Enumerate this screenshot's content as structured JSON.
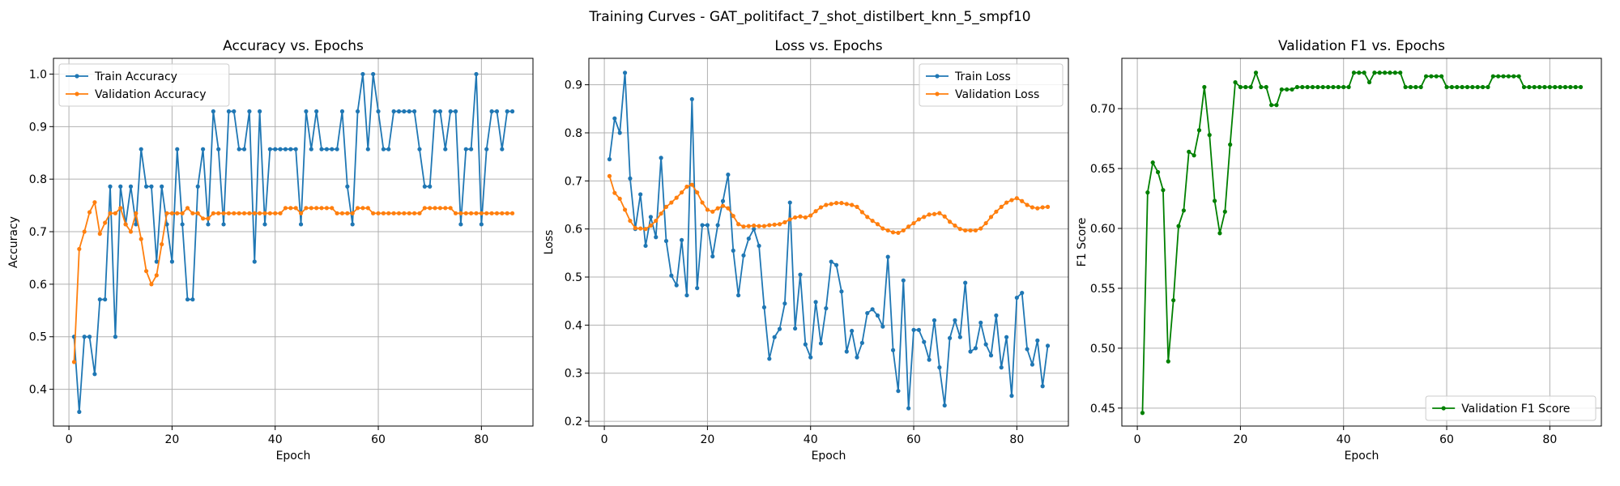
{
  "suptitle": "Training Curves - GAT_politifact_7_shot_distilbert_knn_5_smpf10",
  "chart_data": [
    {
      "type": "line",
      "title": "Accuracy vs. Epochs",
      "xlabel": "Epoch",
      "ylabel": "Accuracy",
      "xlim": [
        -3,
        90
      ],
      "ylim": [
        0.33,
        1.03
      ],
      "xticks": [
        0,
        20,
        40,
        60,
        80
      ],
      "yticks": [
        0.4,
        0.5,
        0.6,
        0.7,
        0.8,
        0.9,
        1.0
      ],
      "ytick_decimals": 1,
      "grid": true,
      "legend_position": "upper-left",
      "x_start": 1,
      "series": [
        {
          "name": "Train Accuracy",
          "color": "#1f77b4",
          "values": [
            0.5,
            0.357,
            0.5,
            0.5,
            0.429,
            0.571,
            0.571,
            0.786,
            0.5,
            0.786,
            0.714,
            0.786,
            0.714,
            0.857,
            0.786,
            0.786,
            0.643,
            0.786,
            0.714,
            0.643,
            0.857,
            0.714,
            0.571,
            0.571,
            0.786,
            0.857,
            0.714,
            0.929,
            0.857,
            0.714,
            0.929,
            0.929,
            0.857,
            0.857,
            0.929,
            0.643,
            0.929,
            0.714,
            0.857,
            0.857,
            0.857,
            0.857,
            0.857,
            0.857,
            0.714,
            0.929,
            0.857,
            0.929,
            0.857,
            0.857,
            0.857,
            0.857,
            0.929,
            0.786,
            0.714,
            0.929,
            1.0,
            0.857,
            1.0,
            0.929,
            0.857,
            0.857,
            0.929,
            0.929,
            0.929,
            0.929,
            0.929,
            0.857,
            0.786,
            0.786,
            0.929,
            0.929,
            0.857,
            0.929,
            0.929,
            0.714,
            0.857,
            0.857,
            1.0,
            0.714,
            0.857,
            0.929,
            0.929,
            0.857,
            0.929,
            0.929
          ]
        },
        {
          "name": "Validation Accuracy",
          "color": "#ff7f0e",
          "values": [
            0.452,
            0.667,
            0.7,
            0.737,
            0.756,
            0.696,
            0.717,
            0.735,
            0.735,
            0.745,
            0.714,
            0.7,
            0.735,
            0.686,
            0.625,
            0.6,
            0.617,
            0.676,
            0.735,
            0.735,
            0.735,
            0.735,
            0.745,
            0.735,
            0.735,
            0.725,
            0.725,
            0.735,
            0.735,
            0.735,
            0.735,
            0.735,
            0.735,
            0.735,
            0.735,
            0.735,
            0.735,
            0.735,
            0.735,
            0.735,
            0.735,
            0.745,
            0.745,
            0.745,
            0.735,
            0.745,
            0.745,
            0.745,
            0.745,
            0.745,
            0.745,
            0.735,
            0.735,
            0.735,
            0.735,
            0.745,
            0.745,
            0.745,
            0.735,
            0.735,
            0.735,
            0.735,
            0.735,
            0.735,
            0.735,
            0.735,
            0.735,
            0.735,
            0.745,
            0.745,
            0.745,
            0.745,
            0.745,
            0.745,
            0.735,
            0.735,
            0.735,
            0.735,
            0.735,
            0.735,
            0.735,
            0.735,
            0.735,
            0.735,
            0.735,
            0.735
          ]
        }
      ]
    },
    {
      "type": "line",
      "title": "Loss vs. Epochs",
      "xlabel": "Epoch",
      "ylabel": "Loss",
      "xlim": [
        -3,
        90
      ],
      "ylim": [
        0.19,
        0.955
      ],
      "xticks": [
        0,
        20,
        40,
        60,
        80
      ],
      "yticks": [
        0.2,
        0.3,
        0.4,
        0.5,
        0.6,
        0.7,
        0.8,
        0.9
      ],
      "ytick_decimals": 1,
      "grid": true,
      "legend_position": "upper-right",
      "x_start": 1,
      "series": [
        {
          "name": "Train Loss",
          "color": "#1f77b4",
          "values": [
            0.745,
            0.83,
            0.8,
            0.925,
            0.705,
            0.6,
            0.672,
            0.565,
            0.625,
            0.583,
            0.748,
            0.575,
            0.503,
            0.483,
            0.577,
            0.462,
            0.87,
            0.477,
            0.608,
            0.608,
            0.543,
            0.608,
            0.658,
            0.713,
            0.555,
            0.462,
            0.545,
            0.58,
            0.6,
            0.565,
            0.437,
            0.33,
            0.375,
            0.392,
            0.445,
            0.655,
            0.393,
            0.505,
            0.36,
            0.333,
            0.448,
            0.362,
            0.435,
            0.532,
            0.525,
            0.47,
            0.345,
            0.388,
            0.333,
            0.363,
            0.425,
            0.433,
            0.42,
            0.397,
            0.542,
            0.348,
            0.263,
            0.493,
            0.227,
            0.39,
            0.39,
            0.365,
            0.328,
            0.41,
            0.312,
            0.233,
            0.373,
            0.41,
            0.375,
            0.488,
            0.345,
            0.352,
            0.405,
            0.36,
            0.337,
            0.42,
            0.312,
            0.375,
            0.253,
            0.457,
            0.467,
            0.35,
            0.318,
            0.368,
            0.273,
            0.357
          ]
        },
        {
          "name": "Validation Loss",
          "color": "#ff7f0e",
          "values": [
            0.71,
            0.675,
            0.663,
            0.64,
            0.617,
            0.602,
            0.601,
            0.6,
            0.607,
            0.617,
            0.632,
            0.646,
            0.655,
            0.665,
            0.676,
            0.688,
            0.692,
            0.676,
            0.655,
            0.64,
            0.636,
            0.643,
            0.648,
            0.643,
            0.627,
            0.61,
            0.605,
            0.606,
            0.607,
            0.606,
            0.606,
            0.608,
            0.609,
            0.61,
            0.614,
            0.62,
            0.624,
            0.626,
            0.624,
            0.628,
            0.637,
            0.645,
            0.65,
            0.652,
            0.654,
            0.654,
            0.652,
            0.65,
            0.646,
            0.635,
            0.625,
            0.617,
            0.61,
            0.601,
            0.597,
            0.593,
            0.592,
            0.597,
            0.605,
            0.612,
            0.62,
            0.625,
            0.63,
            0.631,
            0.633,
            0.626,
            0.615,
            0.607,
            0.6,
            0.597,
            0.597,
            0.597,
            0.601,
            0.612,
            0.625,
            0.636,
            0.646,
            0.655,
            0.66,
            0.664,
            0.658,
            0.65,
            0.645,
            0.643,
            0.645,
            0.646
          ]
        }
      ]
    },
    {
      "type": "line",
      "title": "Validation F1 vs. Epochs",
      "xlabel": "Epoch",
      "ylabel": "F1 Score",
      "xlim": [
        -3,
        90
      ],
      "ylim": [
        0.435,
        0.742
      ],
      "xticks": [
        0,
        20,
        40,
        60,
        80
      ],
      "yticks": [
        0.45,
        0.5,
        0.55,
        0.6,
        0.65,
        0.7
      ],
      "ytick_decimals": 2,
      "grid": true,
      "legend_position": "lower-right",
      "x_start": 1,
      "series": [
        {
          "name": "Validation F1 Score",
          "color": "#008000",
          "values": [
            0.446,
            0.63,
            0.655,
            0.647,
            0.632,
            0.489,
            0.54,
            0.602,
            0.615,
            0.664,
            0.661,
            0.682,
            0.718,
            0.678,
            0.623,
            0.596,
            0.614,
            0.67,
            0.722,
            0.718,
            0.718,
            0.718,
            0.73,
            0.718,
            0.718,
            0.703,
            0.703,
            0.716,
            0.716,
            0.716,
            0.718,
            0.718,
            0.718,
            0.718,
            0.718,
            0.718,
            0.718,
            0.718,
            0.718,
            0.718,
            0.718,
            0.73,
            0.73,
            0.73,
            0.722,
            0.73,
            0.73,
            0.73,
            0.73,
            0.73,
            0.73,
            0.718,
            0.718,
            0.718,
            0.718,
            0.727,
            0.727,
            0.727,
            0.727,
            0.718,
            0.718,
            0.718,
            0.718,
            0.718,
            0.718,
            0.718,
            0.718,
            0.718,
            0.727,
            0.727,
            0.727,
            0.727,
            0.727,
            0.727,
            0.718,
            0.718,
            0.718,
            0.718,
            0.718,
            0.718,
            0.718,
            0.718,
            0.718,
            0.718,
            0.718,
            0.718
          ]
        }
      ]
    }
  ]
}
